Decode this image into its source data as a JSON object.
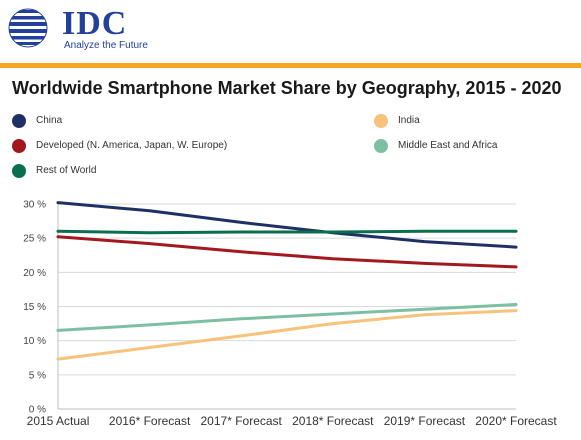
{
  "brand": {
    "name": "IDC",
    "tagline": "Analyze the Future",
    "color": "#23409a",
    "accent_rule_color": "#f5a623"
  },
  "chart_data": {
    "type": "line",
    "title": "Worldwide Smartphone Market Share by Geography, 2015 - 2020",
    "categories": [
      "2015 Actual",
      "2016* Forecast",
      "2017* Forecast",
      "2018* Forecast",
      "2019* Forecast",
      "2020* Forecast"
    ],
    "yticks": [
      "0 %",
      "5 %",
      "10 %",
      "15 %",
      "20 %",
      "25 %",
      "30 %"
    ],
    "ylim": [
      0,
      30
    ],
    "grid": true,
    "legend_position": "top",
    "series": [
      {
        "name": "China",
        "color": "#1f3064",
        "values": [
          30.2,
          29.0,
          27.3,
          25.8,
          24.5,
          23.7
        ]
      },
      {
        "name": "Developed (N. America, Japan, W. Europe)",
        "color": "#a3171e",
        "values": [
          25.2,
          24.2,
          23.0,
          22.0,
          21.3,
          20.8
        ]
      },
      {
        "name": "Rest of World",
        "color": "#0b6e4f",
        "values": [
          26.0,
          25.8,
          25.9,
          25.9,
          26.0,
          26.0
        ]
      },
      {
        "name": "India",
        "color": "#f7c27a",
        "values": [
          7.3,
          9.0,
          10.7,
          12.5,
          13.8,
          14.4
        ]
      },
      {
        "name": "Middle East and Africa",
        "color": "#7dbfa2",
        "values": [
          11.5,
          12.3,
          13.2,
          13.9,
          14.6,
          15.3
        ]
      }
    ]
  }
}
